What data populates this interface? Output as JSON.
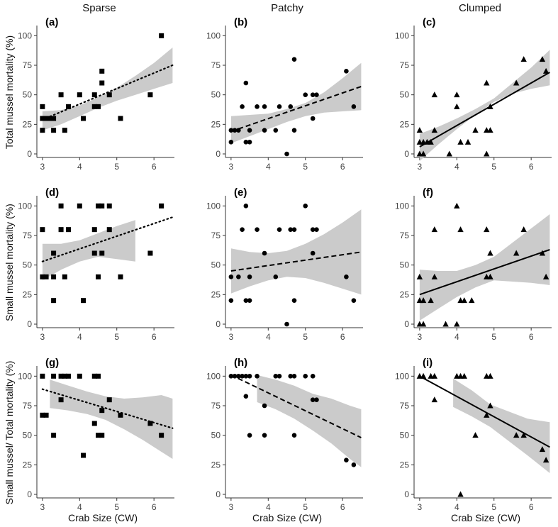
{
  "chart_data": {
    "type": "scatter",
    "column_titles": [
      "Sparse",
      "Patchy",
      "Clumped"
    ],
    "row_ylabels": [
      "Total mussel mortality (%)",
      "Small mussel mortality (%)",
      "Small mussel/ Total mortality (%)"
    ],
    "xlabel": "Crab Size (CW)",
    "x_ticks": [
      3,
      4,
      5,
      6
    ],
    "y_ticks": [
      0,
      25,
      50,
      75,
      100
    ],
    "xlim": [
      2.85,
      6.55
    ],
    "ylim": [
      -3,
      105
    ],
    "colors": {
      "point": "#000000",
      "ribbon": "#c8c8c8",
      "line": "#000000"
    },
    "panels": [
      {
        "label": "(a)",
        "row": 0,
        "col": 0,
        "marker": "square",
        "line_style": "dotted",
        "fit": {
          "x": [
            3.0,
            6.5
          ],
          "y": [
            29,
            75
          ]
        },
        "ci": {
          "x": [
            3.0,
            3.5,
            4.0,
            4.5,
            5.0,
            5.5,
            6.0,
            6.5
          ],
          "lower": [
            20,
            25,
            32,
            39,
            45,
            50,
            55,
            60
          ],
          "upper": [
            36,
            37,
            41,
            48,
            56,
            66,
            77,
            90
          ]
        },
        "points": [
          [
            3.0,
            20
          ],
          [
            3.0,
            30
          ],
          [
            3.0,
            40
          ],
          [
            3.1,
            30
          ],
          [
            3.2,
            30
          ],
          [
            3.3,
            20
          ],
          [
            3.3,
            30
          ],
          [
            3.5,
            50
          ],
          [
            3.6,
            20
          ],
          [
            3.7,
            40
          ],
          [
            4.0,
            50
          ],
          [
            4.1,
            30
          ],
          [
            4.4,
            40
          ],
          [
            4.4,
            50
          ],
          [
            4.5,
            40
          ],
          [
            4.6,
            60
          ],
          [
            4.6,
            70
          ],
          [
            4.8,
            50
          ],
          [
            5.1,
            30
          ],
          [
            5.9,
            50
          ],
          [
            6.2,
            100
          ]
        ]
      },
      {
        "label": "(b)",
        "row": 0,
        "col": 1,
        "marker": "circle",
        "line_style": "dashed",
        "fit": {
          "x": [
            3.0,
            6.5
          ],
          "y": [
            19,
            57
          ]
        },
        "ci": {
          "x": [
            3.0,
            3.5,
            4.0,
            4.5,
            5.0,
            5.5,
            6.0,
            6.5
          ],
          "lower": [
            9,
            15,
            21,
            27,
            32,
            35,
            36,
            37
          ],
          "upper": [
            32,
            33,
            34,
            38,
            43,
            52,
            64,
            77
          ]
        },
        "points": [
          [
            3.0,
            10
          ],
          [
            3.0,
            20
          ],
          [
            3.1,
            20
          ],
          [
            3.2,
            20
          ],
          [
            3.3,
            40
          ],
          [
            3.4,
            10
          ],
          [
            3.4,
            60
          ],
          [
            3.5,
            10
          ],
          [
            3.5,
            20
          ],
          [
            3.7,
            40
          ],
          [
            3.9,
            20
          ],
          [
            3.9,
            40
          ],
          [
            4.2,
            20
          ],
          [
            4.3,
            40
          ],
          [
            4.5,
            0
          ],
          [
            4.6,
            40
          ],
          [
            4.7,
            20
          ],
          [
            4.7,
            80
          ],
          [
            5.0,
            50
          ],
          [
            5.2,
            30
          ],
          [
            5.2,
            50
          ],
          [
            5.3,
            50
          ],
          [
            6.1,
            70
          ],
          [
            6.3,
            40
          ]
        ]
      },
      {
        "label": "(c)",
        "row": 0,
        "col": 2,
        "marker": "triangle",
        "line_style": "solid",
        "fit": {
          "x": [
            3.0,
            6.5
          ],
          "y": [
            6,
            69
          ]
        },
        "ci": {
          "x": [
            3.0,
            3.5,
            4.0,
            4.5,
            5.0,
            5.5,
            6.0,
            6.5
          ],
          "lower": [
            -6,
            8,
            21,
            33,
            44,
            51,
            55,
            58
          ],
          "upper": [
            17,
            23,
            30,
            38,
            47,
            60,
            73,
            88
          ]
        },
        "points": [
          [
            3.0,
            0
          ],
          [
            3.0,
            10
          ],
          [
            3.0,
            20
          ],
          [
            3.1,
            10
          ],
          [
            3.1,
            0
          ],
          [
            3.2,
            10
          ],
          [
            3.3,
            10
          ],
          [
            3.4,
            20
          ],
          [
            3.4,
            50
          ],
          [
            3.8,
            0
          ],
          [
            4.0,
            40
          ],
          [
            4.0,
            50
          ],
          [
            4.1,
            10
          ],
          [
            4.3,
            10
          ],
          [
            4.5,
            20
          ],
          [
            4.8,
            0
          ],
          [
            4.8,
            20
          ],
          [
            4.8,
            60
          ],
          [
            4.9,
            20
          ],
          [
            4.9,
            40
          ],
          [
            5.6,
            60
          ],
          [
            5.8,
            80
          ],
          [
            6.3,
            80
          ],
          [
            6.4,
            70
          ]
        ]
      },
      {
        "label": "(d)",
        "row": 1,
        "col": 0,
        "marker": "square",
        "line_style": "dotted",
        "fit": {
          "x": [
            3.0,
            6.55
          ],
          "y": [
            53,
            91
          ]
        },
        "ci": {
          "x": [
            3.0,
            3.5,
            4.0,
            4.5,
            5.0,
            5.5
          ],
          "lower": [
            37,
            46,
            53,
            57,
            55,
            53
          ],
          "upper": [
            68,
            68,
            71,
            77,
            83,
            88
          ]
        },
        "points": [
          [
            3.0,
            40
          ],
          [
            3.0,
            80
          ],
          [
            3.1,
            40
          ],
          [
            3.3,
            20
          ],
          [
            3.3,
            40
          ],
          [
            3.3,
            60
          ],
          [
            3.5,
            80
          ],
          [
            3.5,
            100
          ],
          [
            3.6,
            40
          ],
          [
            3.7,
            80
          ],
          [
            4.0,
            100
          ],
          [
            4.1,
            20
          ],
          [
            4.4,
            60
          ],
          [
            4.4,
            80
          ],
          [
            4.5,
            40
          ],
          [
            4.5,
            100
          ],
          [
            4.6,
            60
          ],
          [
            4.6,
            100
          ],
          [
            4.8,
            80
          ],
          [
            4.8,
            100
          ],
          [
            5.1,
            40
          ],
          [
            5.9,
            60
          ],
          [
            6.2,
            100
          ]
        ]
      },
      {
        "label": "(e)",
        "row": 1,
        "col": 1,
        "marker": "circle",
        "line_style": "dashed",
        "fit": {
          "x": [
            3.0,
            6.5
          ],
          "y": [
            45,
            61
          ]
        },
        "ci": {
          "x": [
            3.0,
            3.5,
            4.0,
            4.5,
            5.0,
            5.5,
            6.0,
            6.5
          ],
          "lower": [
            26,
            32,
            37,
            40,
            39,
            35,
            30,
            25
          ],
          "upper": [
            64,
            61,
            60,
            62,
            68,
            76,
            86,
            97
          ]
        },
        "points": [
          [
            3.0,
            20
          ],
          [
            3.0,
            40
          ],
          [
            3.2,
            40
          ],
          [
            3.3,
            80
          ],
          [
            3.4,
            20
          ],
          [
            3.4,
            100
          ],
          [
            3.5,
            20
          ],
          [
            3.5,
            40
          ],
          [
            3.7,
            80
          ],
          [
            3.9,
            60
          ],
          [
            4.2,
            40
          ],
          [
            4.3,
            80
          ],
          [
            4.5,
            0
          ],
          [
            4.6,
            80
          ],
          [
            4.7,
            20
          ],
          [
            4.7,
            80
          ],
          [
            5.0,
            100
          ],
          [
            5.2,
            60
          ],
          [
            5.2,
            80
          ],
          [
            5.3,
            80
          ],
          [
            6.1,
            40
          ],
          [
            6.3,
            20
          ]
        ]
      },
      {
        "label": "(f)",
        "row": 1,
        "col": 2,
        "marker": "triangle",
        "line_style": "solid",
        "fit": {
          "x": [
            3.0,
            6.5
          ],
          "y": [
            25,
            63
          ]
        },
        "ci": {
          "x": [
            3.0,
            3.5,
            4.0,
            4.5,
            5.0,
            5.5,
            6.0,
            6.5
          ],
          "lower": [
            3,
            13,
            23,
            31,
            37,
            36,
            35,
            33
          ],
          "upper": [
            46,
            45,
            45,
            50,
            57,
            69,
            81,
            93
          ]
        },
        "points": [
          [
            3.0,
            0
          ],
          [
            3.0,
            20
          ],
          [
            3.0,
            40
          ],
          [
            3.1,
            0
          ],
          [
            3.1,
            20
          ],
          [
            3.3,
            20
          ],
          [
            3.4,
            40
          ],
          [
            3.4,
            80
          ],
          [
            3.7,
            0
          ],
          [
            4.0,
            0
          ],
          [
            4.0,
            100
          ],
          [
            4.1,
            20
          ],
          [
            4.1,
            80
          ],
          [
            4.2,
            20
          ],
          [
            4.4,
            20
          ],
          [
            4.8,
            40
          ],
          [
            4.8,
            80
          ],
          [
            4.9,
            40
          ],
          [
            4.9,
            60
          ],
          [
            5.6,
            60
          ],
          [
            5.8,
            80
          ],
          [
            6.3,
            60
          ],
          [
            6.4,
            40
          ]
        ]
      },
      {
        "label": "(g)",
        "row": 2,
        "col": 0,
        "marker": "square",
        "line_style": "dotted",
        "fit": {
          "x": [
            3.0,
            6.5
          ],
          "y": [
            89,
            56
          ]
        },
        "ci": {
          "x": [
            3.2,
            3.7,
            4.2,
            4.7,
            5.2,
            5.7,
            6.2,
            6.5
          ],
          "lower": [
            73,
            71,
            68,
            63,
            55,
            46,
            36,
            30
          ],
          "upper": [
            97,
            92,
            87,
            83,
            81,
            82,
            84,
            81
          ]
        },
        "points": [
          [
            3.0,
            67
          ],
          [
            3.0,
            100
          ],
          [
            3.1,
            67
          ],
          [
            3.3,
            50
          ],
          [
            3.3,
            100
          ],
          [
            3.5,
            80
          ],
          [
            3.5,
            100
          ],
          [
            3.6,
            100
          ],
          [
            3.7,
            100
          ],
          [
            4.0,
            100
          ],
          [
            4.1,
            33
          ],
          [
            4.4,
            60
          ],
          [
            4.4,
            100
          ],
          [
            4.5,
            50
          ],
          [
            4.5,
            100
          ],
          [
            4.6,
            50
          ],
          [
            4.6,
            71
          ],
          [
            4.8,
            80
          ],
          [
            5.1,
            67
          ],
          [
            5.9,
            60
          ],
          [
            6.2,
            50
          ]
        ]
      },
      {
        "label": "(h)",
        "row": 2,
        "col": 1,
        "marker": "circle",
        "line_style": "dashed",
        "fit": {
          "x": [
            3.0,
            6.5
          ],
          "y": [
            101,
            48
          ]
        },
        "ci": {
          "x": [
            3.7,
            4.2,
            4.7,
            5.2,
            5.7,
            6.2,
            6.5
          ],
          "lower": [
            78,
            72,
            64,
            54,
            43,
            30,
            23
          ],
          "upper": [
            101,
            97,
            92,
            85,
            81,
            75,
            72
          ]
        },
        "points": [
          [
            3.0,
            100
          ],
          [
            3.1,
            100
          ],
          [
            3.2,
            100
          ],
          [
            3.3,
            100
          ],
          [
            3.4,
            100
          ],
          [
            3.4,
            83
          ],
          [
            3.5,
            100
          ],
          [
            3.5,
            50
          ],
          [
            3.7,
            100
          ],
          [
            3.9,
            75
          ],
          [
            3.9,
            50
          ],
          [
            4.2,
            100
          ],
          [
            4.3,
            100
          ],
          [
            4.6,
            100
          ],
          [
            4.7,
            100
          ],
          [
            4.7,
            50
          ],
          [
            5.0,
            100
          ],
          [
            5.2,
            100
          ],
          [
            5.2,
            80
          ],
          [
            5.3,
            80
          ],
          [
            6.1,
            29
          ],
          [
            6.3,
            25
          ]
        ]
      },
      {
        "label": "(i)",
        "row": 2,
        "col": 2,
        "marker": "triangle",
        "line_style": "solid",
        "fit": {
          "x": [
            3.0,
            6.5
          ],
          "y": [
            100,
            40
          ]
        },
        "ci": {
          "x": [
            3.9,
            4.4,
            4.9,
            5.4,
            5.9,
            6.5
          ],
          "lower": [
            74,
            66,
            57,
            45,
            33,
            18
          ],
          "upper": [
            98,
            88,
            76,
            70,
            64,
            61
          ]
        },
        "points": [
          [
            3.0,
            100
          ],
          [
            3.1,
            100
          ],
          [
            3.3,
            100
          ],
          [
            3.4,
            100
          ],
          [
            3.4,
            80
          ],
          [
            4.0,
            100
          ],
          [
            4.1,
            100
          ],
          [
            4.1,
            0
          ],
          [
            4.2,
            100
          ],
          [
            4.5,
            50
          ],
          [
            4.8,
            100
          ],
          [
            4.8,
            67
          ],
          [
            4.9,
            100
          ],
          [
            4.9,
            75
          ],
          [
            5.6,
            50
          ],
          [
            5.8,
            50
          ],
          [
            6.3,
            38
          ],
          [
            6.4,
            29
          ]
        ]
      }
    ]
  }
}
